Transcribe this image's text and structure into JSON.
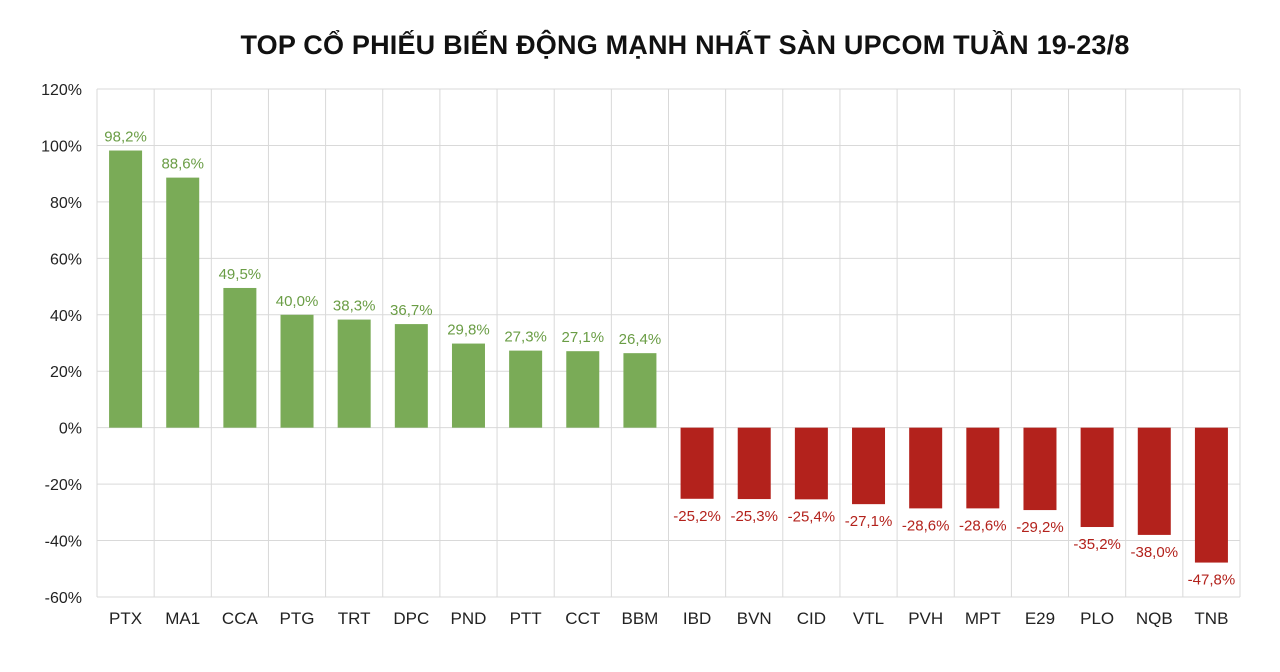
{
  "chart_data": {
    "type": "bar",
    "title": "TOP CỔ PHIẾU BIẾN ĐỘNG MẠNH NHẤT SÀN UPCOM TUẦN 19-23/8",
    "xlabel": "",
    "ylabel": "",
    "ylim": [
      -60,
      120
    ],
    "y_ticks": [
      120,
      100,
      80,
      60,
      40,
      20,
      0,
      -20,
      -40,
      -60
    ],
    "y_tick_labels": [
      "120%",
      "100%",
      "80%",
      "60%",
      "40%",
      "20%",
      "0%",
      "-20%",
      "-40%",
      "-60%"
    ],
    "grid": true,
    "legend": "none",
    "categories": [
      "PTX",
      "MA1",
      "CCA",
      "PTG",
      "TRT",
      "DPC",
      "PND",
      "PTT",
      "CCT",
      "BBM",
      "IBD",
      "BVN",
      "CID",
      "VTL",
      "PVH",
      "MPT",
      "E29",
      "PLO",
      "NQB",
      "TNB"
    ],
    "values": [
      98.2,
      88.6,
      49.5,
      40.0,
      38.3,
      36.7,
      29.8,
      27.3,
      27.1,
      26.4,
      -25.2,
      -25.3,
      -25.4,
      -27.1,
      -28.6,
      -28.6,
      -29.2,
      -35.2,
      -38.0,
      -47.8
    ],
    "data_labels": [
      "98,2%",
      "88,6%",
      "49,5%",
      "40,0%",
      "38,3%",
      "36,7%",
      "29,8%",
      "27,3%",
      "27,1%",
      "26,4%",
      "-25,2%",
      "-25,3%",
      "-25,4%",
      "-27,1%",
      "-28,6%",
      "-28,6%",
      "-29,2%",
      "-35,2%",
      "-38,0%",
      "-47,8%"
    ],
    "colors": {
      "positive_bar": "#7aab57",
      "negative_bar": "#b3221c",
      "positive_label": "#6a9d45",
      "negative_label": "#b3221c",
      "grid": "#d9d9d9"
    }
  }
}
